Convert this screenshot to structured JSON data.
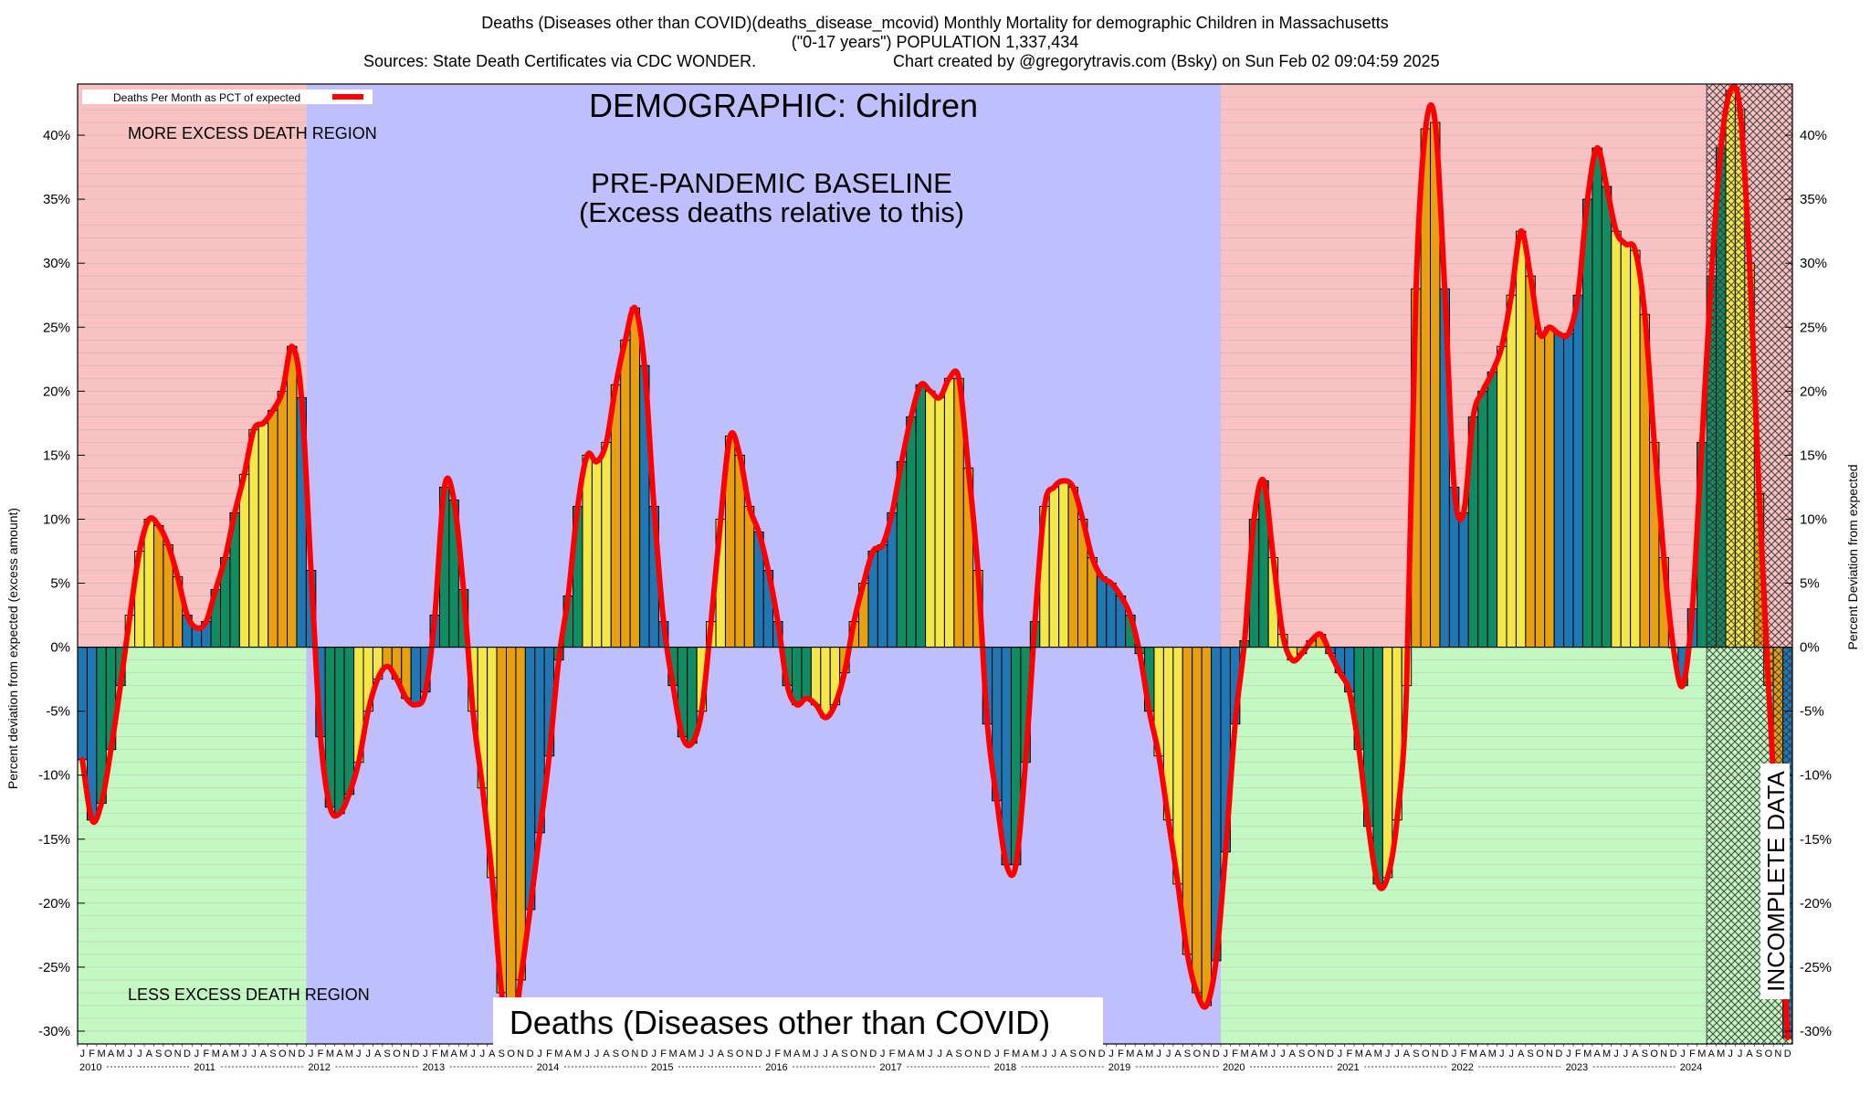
{
  "header": {
    "title": "Deaths (Diseases other than COVID)(deaths_disease_mcovid) Monthly Mortality for demographic Children in Massachusetts",
    "subtitle": "(\"0-17 years\") POPULATION 1,337,434",
    "sources": "Sources: State Death Certificates via CDC WONDER.",
    "credit": "Chart created by @gregorytravis.com (Bsky) on Sun Feb 02 09:04:59 2025"
  },
  "chart_data": {
    "type": "bar",
    "title": "DEMOGRAPHIC: Children",
    "baseline_label_1": "PRE-PANDEMIC BASELINE",
    "baseline_label_2": "(Excess deaths relative to this)",
    "more_region_label": "MORE EXCESS DEATH REGION",
    "less_region_label": "LESS EXCESS DEATH REGION",
    "incomplete_label": "INCOMPLETE DATA",
    "bottom_caption": "Deaths (Diseases other than COVID)",
    "legend_label": "Deaths Per Month as PCT of expected",
    "ylabel_left": "Percent deviation from expected (excess amount)",
    "ylabel_right": "Percent Deviation from expected",
    "ylim": [
      -31,
      44
    ],
    "yticks": [
      -30,
      -25,
      -20,
      -15,
      -10,
      -5,
      0,
      5,
      10,
      15,
      20,
      25,
      30,
      35,
      40
    ],
    "ytick_labels": [
      "-30%",
      "-25%",
      "-20%",
      "-15%",
      "-10%",
      "-5%",
      "0%",
      "5%",
      "10%",
      "15%",
      "20%",
      "25%",
      "30%",
      "35%",
      "40%"
    ],
    "month_letters": [
      "J",
      "F",
      "M",
      "A",
      "M",
      "J",
      "J",
      "A",
      "S",
      "O",
      "N",
      "D"
    ],
    "years": [
      "2010",
      "2011",
      "2012",
      "2013",
      "2014",
      "2015",
      "2016",
      "2017",
      "2018",
      "2019",
      "2020",
      "2021",
      "2022",
      "2023",
      "2024"
    ],
    "start": "2010-01",
    "baseline_period": [
      "2012-01",
      "2019-12"
    ],
    "incomplete_period": [
      "2024-04",
      "2024-12"
    ],
    "grid": true,
    "legend_position": "top-left",
    "colors": {
      "more_region": "#f9c2c2",
      "less_region": "#c4f8c2",
      "baseline_region": "#bfbffd",
      "line": "#ff0000",
      "winter": "#1f77b4",
      "spring": "#118c62",
      "summer": "#f3e74a",
      "autumn": "#e6a012"
    },
    "values": [
      -8.8,
      -13.5,
      -12.2,
      -8.0,
      -3.0,
      2.5,
      7.5,
      10.0,
      9.5,
      8.0,
      5.5,
      2.5,
      1.5,
      2.0,
      4.5,
      7.0,
      10.5,
      13.5,
      17.0,
      17.5,
      18.5,
      20.0,
      23.5,
      19.5,
      6.0,
      -7.0,
      -12.5,
      -13.0,
      -11.5,
      -9.0,
      -5.0,
      -2.5,
      -1.5,
      -2.5,
      -4.0,
      -4.5,
      -3.5,
      2.5,
      12.5,
      11.5,
      4.5,
      -5.0,
      -11.0,
      -18.0,
      -27.0,
      -31.0,
      -26.0,
      -20.5,
      -14.5,
      -8.5,
      -1.0,
      4.0,
      11.0,
      15.0,
      14.5,
      16.0,
      20.5,
      24.0,
      26.5,
      22.0,
      11.0,
      2.0,
      -3.0,
      -7.0,
      -7.5,
      -5.0,
      2.0,
      10.0,
      16.5,
      15.0,
      11.0,
      9.0,
      6.0,
      2.0,
      -3.0,
      -4.5,
      -4.0,
      -4.5,
      -5.5,
      -4.5,
      -2.0,
      2.0,
      5.0,
      7.5,
      8.0,
      10.5,
      14.5,
      18.0,
      20.5,
      20.0,
      19.5,
      21.0,
      21.0,
      14.0,
      6.0,
      -6.0,
      -12.0,
      -17.0,
      -17.0,
      -9.0,
      2.0,
      11.0,
      12.5,
      13.0,
      12.5,
      10.0,
      7.0,
      5.5,
      5.0,
      4.0,
      2.5,
      -0.5,
      -5.0,
      -8.5,
      -13.5,
      -18.5,
      -24.0,
      -27.0,
      -28.0,
      -24.5,
      -16.0,
      -6.0,
      0.5,
      10.0,
      13.0,
      7.0,
      1.0,
      -1.0,
      -0.5,
      0.5,
      1.0,
      -0.5,
      -2.0,
      -3.5,
      -8.0,
      -14.0,
      -18.5,
      -18.0,
      -13.5,
      -3.0,
      28.0,
      40.5,
      41.0,
      28.0,
      12.5,
      10.5,
      18.0,
      20.0,
      21.5,
      23.5,
      27.5,
      32.5,
      29.0,
      24.5,
      25.0,
      24.5,
      24.5,
      27.5,
      35.0,
      39.0,
      36.0,
      32.5,
      31.5,
      31.0,
      26.0,
      16.0,
      7.0,
      0.0,
      -3.0,
      3.0,
      16.0,
      29.0,
      39.0,
      43.5,
      42.0,
      30.0,
      12.0,
      -3.0,
      -17.0,
      -30.5
    ]
  }
}
